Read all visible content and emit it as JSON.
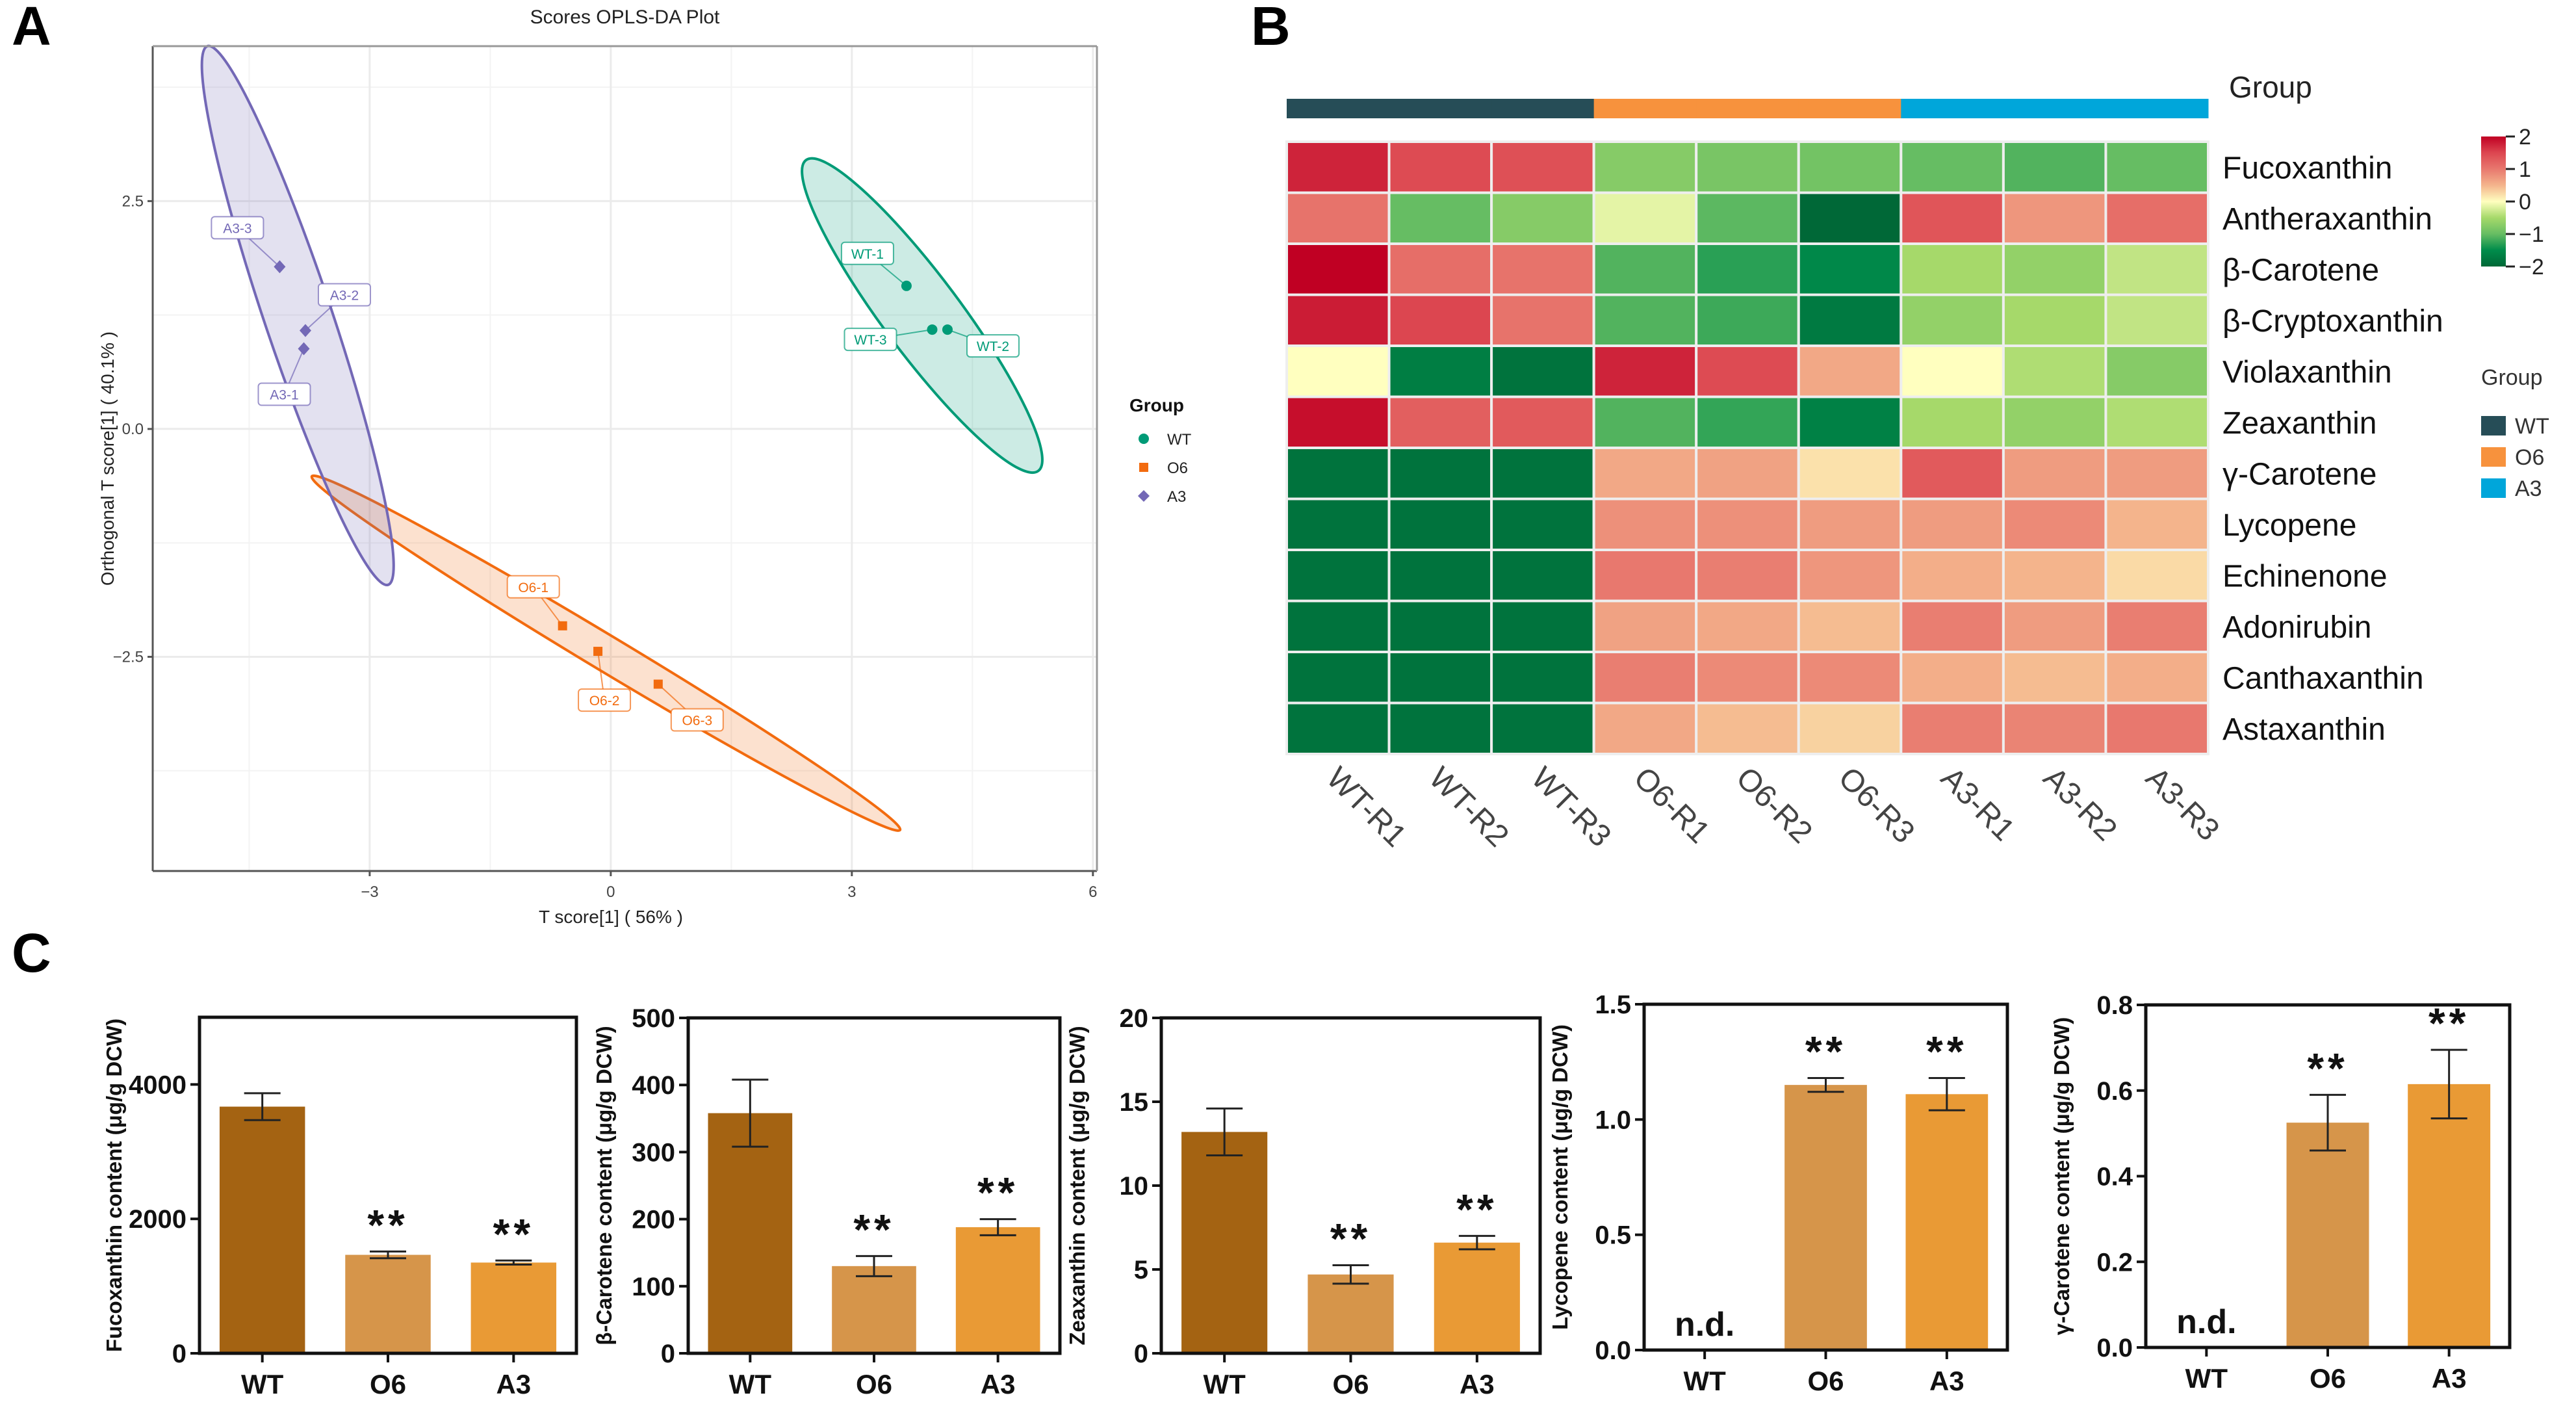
{
  "panels": {
    "a_letter": "A",
    "b_letter": "B",
    "c_letter": "C"
  },
  "colors": {
    "wt_scatter": "#009B77",
    "o6_scatter": "#F26B0F",
    "a3_scatter": "#7368B6",
    "wt_group_bar": "#264D57",
    "o6_group_bar": "#F7923D",
    "a3_group_bar": "#00A6DA",
    "bar_wt": "#A46312",
    "bar_o6": "#D6954A",
    "bar_a3": "#E99A35"
  },
  "chart_data": [
    {
      "id": "opls",
      "type": "scatter",
      "title": "Scores OPLS-DA Plot",
      "xlabel": "T score[1] ( 56% )",
      "ylabel": "Orthogonal T score[1] ( 40.1% )",
      "xlim": [
        -5.7,
        6.05
      ],
      "ylim": [
        -4.85,
        4.2
      ],
      "xticks": [
        -3,
        0,
        3,
        6
      ],
      "xtick_labels": [
        "−3",
        "0",
        "3",
        "6"
      ],
      "yticks": [
        2.5,
        0.0,
        -2.5
      ],
      "ytick_labels": [
        "2.5",
        "0.0",
        "−2.5"
      ],
      "grid": true,
      "legend": {
        "title": "Group",
        "position": "right",
        "entries": [
          "WT",
          "O6",
          "A3"
        ]
      },
      "series": [
        {
          "name": "WT",
          "marker": "circle",
          "points": [
            {
              "label": "WT-1",
              "x": 3.68,
              "y": 1.57
            },
            {
              "label": "WT-2",
              "x": 4.19,
              "y": 1.09
            },
            {
              "label": "WT-3",
              "x": 4.0,
              "y": 1.09
            }
          ],
          "ellipse": {
            "cx": 3.88,
            "cy": 1.25,
            "end1": [
              2.43,
              2.95
            ],
            "end2": [
              5.32,
              -0.46
            ],
            "minor": 0.48
          }
        },
        {
          "name": "O6",
          "marker": "square",
          "points": [
            {
              "label": "O6-1",
              "x": -0.6,
              "y": -2.16
            },
            {
              "label": "O6-2",
              "x": -0.16,
              "y": -2.44
            },
            {
              "label": "O6-3",
              "x": 0.59,
              "y": -2.8
            }
          ],
          "ellipse": {
            "cx": -0.06,
            "cy": -2.46,
            "end1": [
              -3.72,
              -0.52
            ],
            "end2": [
              3.6,
              -4.4
            ],
            "minor": 0.22
          }
        },
        {
          "name": "A3",
          "marker": "diamond",
          "points": [
            {
              "label": "A3-1",
              "x": -3.82,
              "y": 0.88
            },
            {
              "label": "A3-2",
              "x": -3.8,
              "y": 1.08
            },
            {
              "label": "A3-3",
              "x": -4.12,
              "y": 1.78
            }
          ],
          "ellipse": {
            "cx": -3.9,
            "cy": 1.25,
            "end1": [
              -5.02,
              4.2
            ],
            "end2": [
              -2.77,
              -1.71
            ],
            "minor": 0.42
          }
        }
      ]
    },
    {
      "id": "heatmap",
      "type": "heatmap",
      "group_annotation_title": "Group",
      "columns": [
        "WT-R1",
        "WT-R2",
        "WT-R3",
        "O6-R1",
        "O6-R2",
        "O6-R3",
        "A3-R1",
        "A3-R2",
        "A3-R3"
      ],
      "column_groups": [
        "WT",
        "WT",
        "WT",
        "O6",
        "O6",
        "O6",
        "A3",
        "A3",
        "A3"
      ],
      "rows": [
        "Fucoxanthin",
        "Antheraxanthin",
        "β-Carotene",
        "β-Cryptoxanthin",
        "Violaxanthin",
        "Zeaxanthin",
        "γ-Carotene",
        "Lycopene",
        "Echinenone",
        "Adonirubin",
        "Canthaxanthin",
        "Astaxanthin"
      ],
      "values": [
        [
          1.75,
          1.45,
          1.4,
          -0.75,
          -0.85,
          -0.9,
          -1.0,
          -1.1,
          -1.0
        ],
        [
          1.05,
          -1.0,
          -0.75,
          -0.15,
          -1.05,
          -2.0,
          1.35,
          0.75,
          1.1
        ],
        [
          2.0,
          1.1,
          1.05,
          -1.1,
          -1.3,
          -1.55,
          -0.5,
          -0.65,
          -0.35
        ],
        [
          1.8,
          1.5,
          1.05,
          -1.1,
          -1.2,
          -1.75,
          -0.65,
          -0.5,
          -0.35
        ],
        [
          0.0,
          -1.7,
          -1.85,
          1.75,
          1.45,
          0.6,
          0.0,
          -0.45,
          -0.75
        ],
        [
          1.9,
          1.25,
          1.3,
          -1.1,
          -1.25,
          -1.65,
          -0.5,
          -0.65,
          -0.45
        ],
        [
          -1.85,
          -1.85,
          -1.85,
          0.6,
          0.65,
          0.2,
          1.3,
          0.7,
          0.7
        ],
        [
          -1.85,
          -1.85,
          -1.85,
          0.8,
          0.8,
          0.7,
          0.7,
          0.85,
          0.5
        ],
        [
          -1.85,
          -1.85,
          -1.85,
          1.0,
          0.95,
          0.75,
          0.55,
          0.5,
          0.25
        ],
        [
          -1.85,
          -1.85,
          -1.85,
          0.65,
          0.6,
          0.45,
          0.95,
          0.7,
          0.95
        ],
        [
          -1.85,
          -1.85,
          -1.85,
          0.95,
          0.85,
          0.85,
          0.55,
          0.45,
          0.55
        ],
        [
          -1.85,
          -1.85,
          -1.85,
          0.6,
          0.45,
          0.3,
          0.95,
          0.9,
          1.0
        ]
      ],
      "colorbar": {
        "min": -2,
        "max": 2,
        "ticks": [
          2,
          1,
          0,
          -1,
          -2
        ],
        "tick_labels": [
          "2",
          "1",
          "0",
          "−1",
          "−2"
        ],
        "colors": [
          "#006837",
          "#1A9850",
          "#91CF60",
          "#FFFFBF",
          "#FC8D59",
          "#D73027",
          "#C00023"
        ]
      },
      "legend": {
        "title": "Group",
        "entries": [
          "WT",
          "O6",
          "A3"
        ],
        "position": "right"
      }
    },
    {
      "id": "fucoxanthin",
      "type": "bar",
      "categories": [
        "WT",
        "O6",
        "A3"
      ],
      "values": [
        3670,
        1465,
        1350
      ],
      "errors": [
        200,
        50,
        30
      ],
      "significance": [
        "",
        "**",
        "**"
      ],
      "not_detected": [
        false,
        false,
        false
      ],
      "ylabel": "Fucoxanthin content (μg/g DCW)",
      "ylim": [
        0,
        5000
      ],
      "yticks": [
        0,
        2000,
        4000
      ],
      "ytick_labels": [
        "0",
        "2000",
        "4000"
      ]
    },
    {
      "id": "beta-carotene",
      "type": "bar",
      "categories": [
        "WT",
        "O6",
        "A3"
      ],
      "values": [
        358,
        130,
        188
      ],
      "errors": [
        50,
        15,
        12
      ],
      "significance": [
        "",
        "**",
        "**"
      ],
      "not_detected": [
        false,
        false,
        false
      ],
      "ylabel": "β-Carotene content (μg/g DCW)",
      "ylim": [
        0,
        500
      ],
      "yticks": [
        0,
        100,
        200,
        300,
        400,
        500
      ],
      "ytick_labels": [
        "0",
        "100",
        "200",
        "300",
        "400",
        "500"
      ]
    },
    {
      "id": "zeaxanthin",
      "type": "bar",
      "categories": [
        "WT",
        "O6",
        "A3"
      ],
      "values": [
        13.2,
        4.7,
        6.6
      ],
      "errors": [
        1.4,
        0.55,
        0.4
      ],
      "significance": [
        "",
        "**",
        "**"
      ],
      "not_detected": [
        false,
        false,
        false
      ],
      "ylabel": "Zeaxanthin content (μg/g DCW)",
      "ylim": [
        0,
        20
      ],
      "yticks": [
        0,
        5,
        10,
        15,
        20
      ],
      "ytick_labels": [
        "0",
        "5",
        "10",
        "15",
        "20"
      ]
    },
    {
      "id": "lycopene",
      "type": "bar",
      "categories": [
        "WT",
        "O6",
        "A3"
      ],
      "values": [
        0,
        1.15,
        1.11
      ],
      "errors": [
        0,
        0.03,
        0.07
      ],
      "significance": [
        "",
        "**",
        "**"
      ],
      "not_detected": [
        true,
        false,
        false
      ],
      "nd_label": "n.d.",
      "ylabel": "Lycopene content (μg/g DCW)",
      "ylim": [
        0,
        1.5
      ],
      "yticks": [
        0,
        0.5,
        1.0,
        1.5
      ],
      "ytick_labels": [
        "0.0",
        "0.5",
        "1.0",
        "1.5"
      ]
    },
    {
      "id": "gamma-carotene",
      "type": "bar",
      "categories": [
        "WT",
        "O6",
        "A3"
      ],
      "values": [
        0,
        0.525,
        0.615
      ],
      "errors": [
        0,
        0.065,
        0.08
      ],
      "significance": [
        "",
        "**",
        "**"
      ],
      "not_detected": [
        true,
        false,
        false
      ],
      "nd_label": "n.d.",
      "ylabel": "γ-Carotene content (μg/g DCW)",
      "ylim": [
        0,
        0.8
      ],
      "yticks": [
        0,
        0.2,
        0.4,
        0.6,
        0.8
      ],
      "ytick_labels": [
        "0.0",
        "0.2",
        "0.4",
        "0.6",
        "0.8"
      ]
    }
  ]
}
